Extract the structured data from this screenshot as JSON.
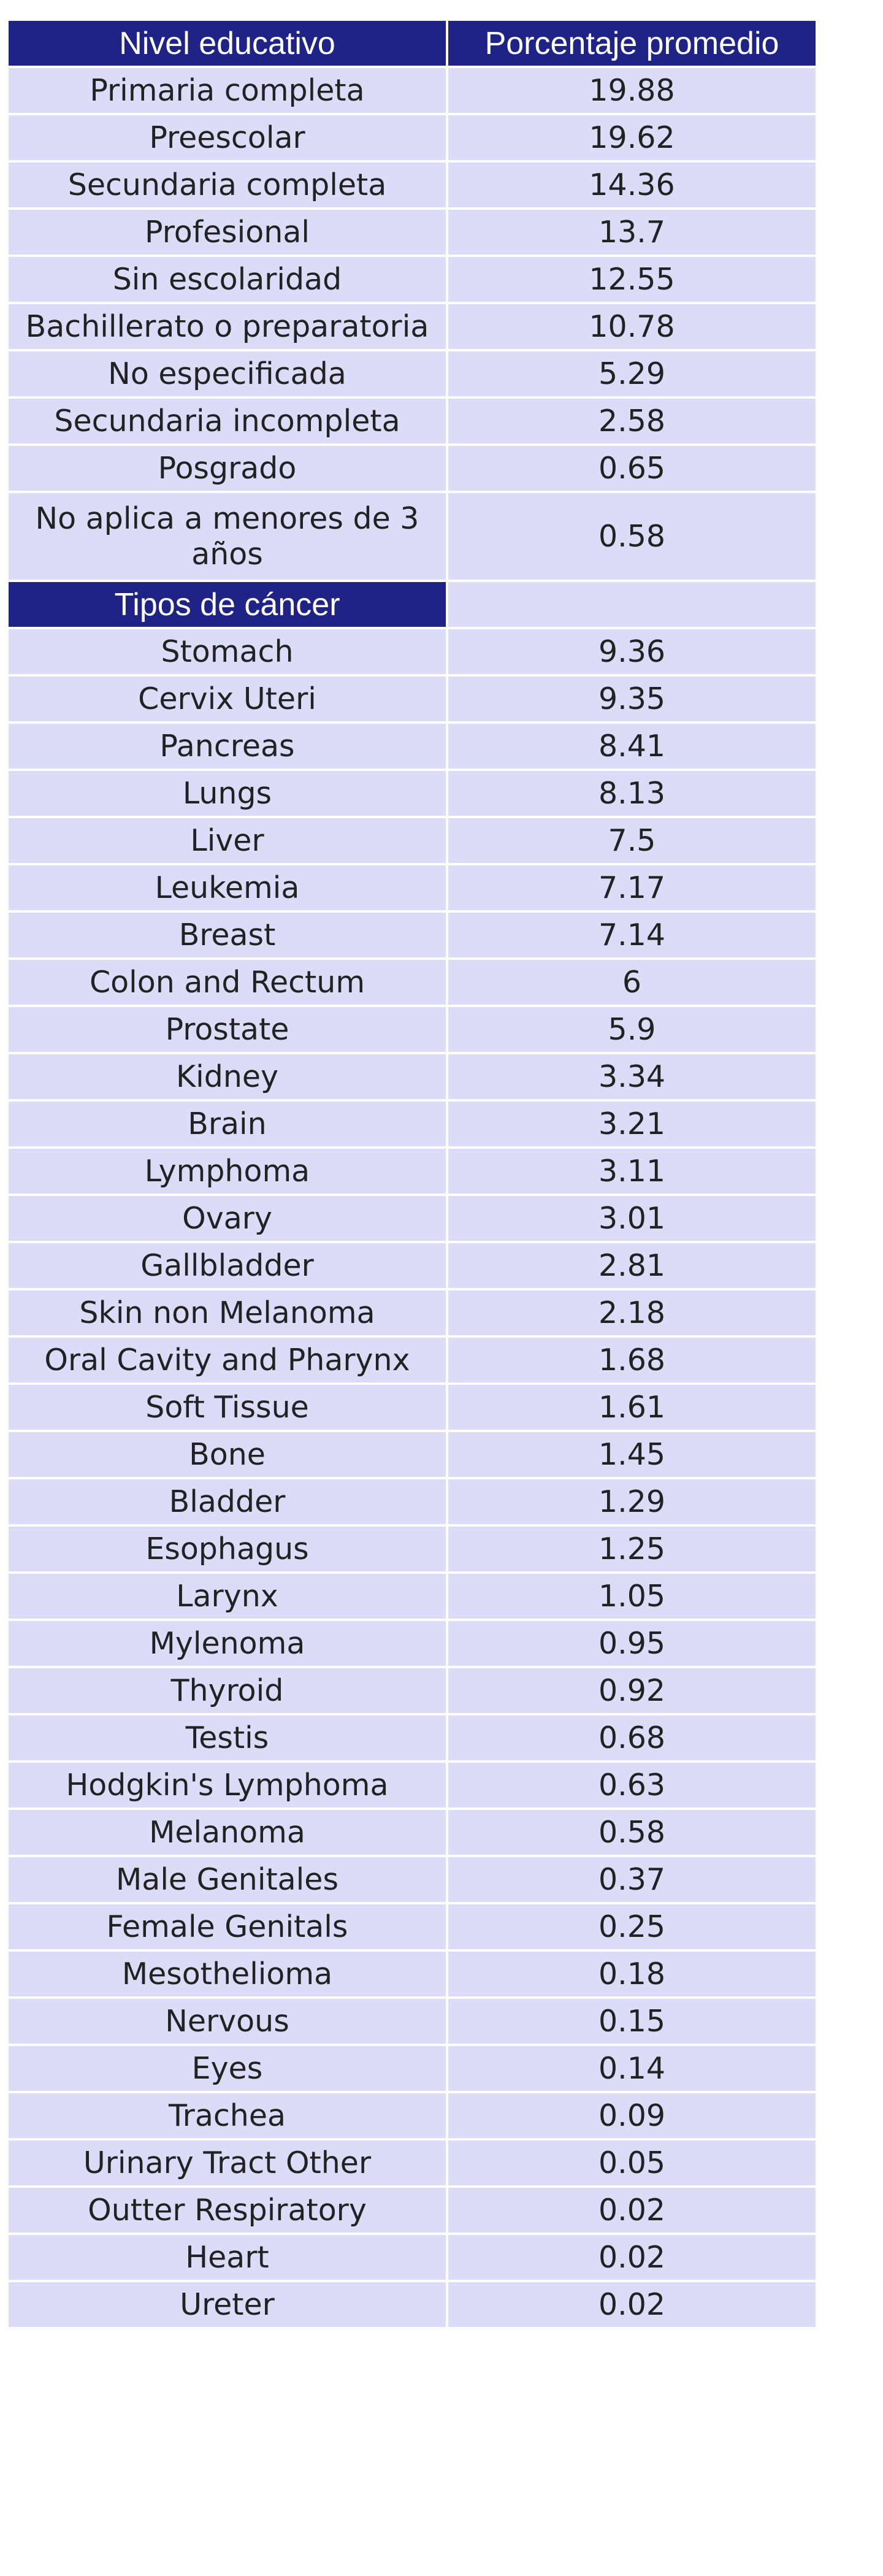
{
  "colors": {
    "header_bg": "#1f2385",
    "header_text": "#ffffff",
    "row_bg": "#dcdcf8",
    "row_text": "#222222"
  },
  "section1": {
    "header": [
      "Nivel educativo",
      "Porcentaje promedio"
    ],
    "rows": [
      [
        "Primaria completa",
        "19.88"
      ],
      [
        "Preescolar",
        "19.62"
      ],
      [
        "Secundaria completa",
        "14.36"
      ],
      [
        "Profesional",
        "13.7"
      ],
      [
        "Sin escolaridad",
        "12.55"
      ],
      [
        "Bachillerato o preparatoria",
        "10.78"
      ],
      [
        "No especificada",
        "5.29"
      ],
      [
        "Secundaria incompleta",
        "2.58"
      ],
      [
        "Posgrado",
        "0.65"
      ],
      [
        "No aplica a menores de 3 años",
        "0.58"
      ]
    ]
  },
  "section2": {
    "header": [
      "Tipos de cáncer",
      ""
    ],
    "rows": [
      [
        "Stomach",
        "9.36"
      ],
      [
        "Cervix Uteri",
        "9.35"
      ],
      [
        "Pancreas",
        "8.41"
      ],
      [
        "Lungs",
        "8.13"
      ],
      [
        "Liver",
        "7.5"
      ],
      [
        "Leukemia",
        "7.17"
      ],
      [
        "Breast",
        "7.14"
      ],
      [
        "Colon and Rectum",
        "6"
      ],
      [
        "Prostate",
        "5.9"
      ],
      [
        "Kidney",
        "3.34"
      ],
      [
        "Brain",
        "3.21"
      ],
      [
        "Lymphoma",
        "3.11"
      ],
      [
        "Ovary",
        "3.01"
      ],
      [
        "Gallbladder",
        "2.81"
      ],
      [
        "Skin non Melanoma",
        "2.18"
      ],
      [
        "Oral Cavity and Pharynx",
        "1.68"
      ],
      [
        "Soft Tissue",
        "1.61"
      ],
      [
        "Bone",
        "1.45"
      ],
      [
        "Bladder",
        "1.29"
      ],
      [
        "Esophagus",
        "1.25"
      ],
      [
        "Larynx",
        "1.05"
      ],
      [
        "Mylenoma",
        "0.95"
      ],
      [
        "Thyroid",
        "0.92"
      ],
      [
        "Testis",
        "0.68"
      ],
      [
        "Hodgkin's Lymphoma",
        "0.63"
      ],
      [
        "Melanoma",
        "0.58"
      ],
      [
        "Male Genitales",
        "0.37"
      ],
      [
        "Female Genitals",
        "0.25"
      ],
      [
        "Mesothelioma",
        "0.18"
      ],
      [
        "Nervous",
        "0.15"
      ],
      [
        "Eyes",
        "0.14"
      ],
      [
        "Trachea",
        "0.09"
      ],
      [
        "Urinary Tract Other",
        "0.05"
      ],
      [
        "Outter Respiratory",
        "0.02"
      ],
      [
        "Heart",
        "0.02"
      ],
      [
        "Ureter",
        "0.02"
      ]
    ]
  }
}
